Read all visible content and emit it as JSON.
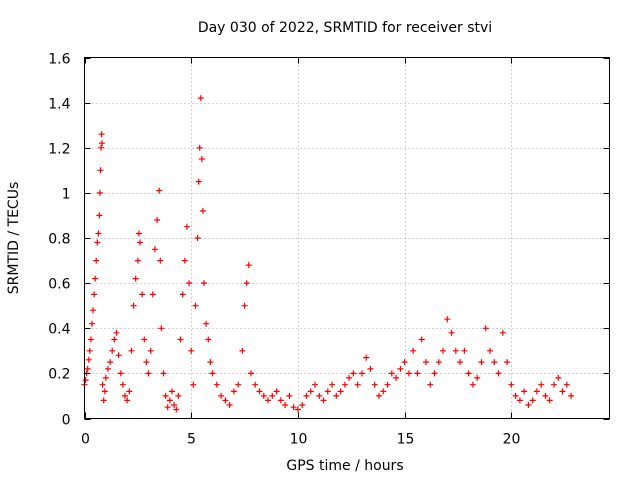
{
  "chart_data": {
    "type": "scatter",
    "title": "Day 030 of 2022, SRMTID for receiver stvi",
    "xlabel": "GPS time / hours",
    "ylabel": "SRMTID / TECUs",
    "xlim": [
      0,
      24.6
    ],
    "ylim": [
      0,
      1.6
    ],
    "x_ticks": [
      0,
      5,
      10,
      15,
      20
    ],
    "x_tick_labels": [
      "0",
      "5",
      "10",
      "15",
      "20"
    ],
    "y_ticks": [
      0,
      0.2,
      0.4,
      0.6,
      0.8,
      1.0,
      1.2,
      1.4,
      1.6
    ],
    "y_tick_labels": [
      "0",
      "0.2",
      "0.4",
      "0.6",
      "0.8",
      "1",
      "1.2",
      "1.4",
      "1.6"
    ],
    "grid": true,
    "marker": "+",
    "marker_color": "#ff0000",
    "series": [
      {
        "name": "stvi",
        "points": [
          [
            0.0,
            0.15
          ],
          [
            0.05,
            0.17
          ],
          [
            0.1,
            0.2
          ],
          [
            0.15,
            0.22
          ],
          [
            0.2,
            0.26
          ],
          [
            0.25,
            0.3
          ],
          [
            0.3,
            0.35
          ],
          [
            0.35,
            0.42
          ],
          [
            0.4,
            0.48
          ],
          [
            0.45,
            0.55
          ],
          [
            0.5,
            0.62
          ],
          [
            0.55,
            0.7
          ],
          [
            0.6,
            0.78
          ],
          [
            0.65,
            0.82
          ],
          [
            0.7,
            0.9
          ],
          [
            0.72,
            1.0
          ],
          [
            0.75,
            1.1
          ],
          [
            0.78,
            1.2
          ],
          [
            0.8,
            1.26
          ],
          [
            0.82,
            1.22
          ],
          [
            0.85,
            0.15
          ],
          [
            0.9,
            0.08
          ],
          [
            0.95,
            0.12
          ],
          [
            1.0,
            0.18
          ],
          [
            1.1,
            0.22
          ],
          [
            1.2,
            0.25
          ],
          [
            1.3,
            0.3
          ],
          [
            1.4,
            0.35
          ],
          [
            1.5,
            0.38
          ],
          [
            1.6,
            0.28
          ],
          [
            1.7,
            0.2
          ],
          [
            1.8,
            0.15
          ],
          [
            1.9,
            0.1
          ],
          [
            2.0,
            0.08
          ],
          [
            2.1,
            0.12
          ],
          [
            2.2,
            0.3
          ],
          [
            2.3,
            0.5
          ],
          [
            2.4,
            0.62
          ],
          [
            2.5,
            0.7
          ],
          [
            2.55,
            0.82
          ],
          [
            2.6,
            0.78
          ],
          [
            2.7,
            0.55
          ],
          [
            2.8,
            0.35
          ],
          [
            2.9,
            0.25
          ],
          [
            3.0,
            0.2
          ],
          [
            3.1,
            0.3
          ],
          [
            3.2,
            0.55
          ],
          [
            3.3,
            0.75
          ],
          [
            3.4,
            0.88
          ],
          [
            3.5,
            1.01
          ],
          [
            3.55,
            0.7
          ],
          [
            3.6,
            0.4
          ],
          [
            3.7,
            0.2
          ],
          [
            3.8,
            0.1
          ],
          [
            3.9,
            0.05
          ],
          [
            4.0,
            0.08
          ],
          [
            4.1,
            0.12
          ],
          [
            4.2,
            0.06
          ],
          [
            4.3,
            0.04
          ],
          [
            4.4,
            0.1
          ],
          [
            4.5,
            0.35
          ],
          [
            4.6,
            0.55
          ],
          [
            4.7,
            0.7
          ],
          [
            4.8,
            0.85
          ],
          [
            4.9,
            0.6
          ],
          [
            5.0,
            0.3
          ],
          [
            5.1,
            0.15
          ],
          [
            5.2,
            0.5
          ],
          [
            5.3,
            0.8
          ],
          [
            5.35,
            1.05
          ],
          [
            5.4,
            1.2
          ],
          [
            5.45,
            1.42
          ],
          [
            5.5,
            1.15
          ],
          [
            5.55,
            0.92
          ],
          [
            5.6,
            0.6
          ],
          [
            5.7,
            0.42
          ],
          [
            5.8,
            0.35
          ],
          [
            5.9,
            0.25
          ],
          [
            6.0,
            0.2
          ],
          [
            6.2,
            0.15
          ],
          [
            6.4,
            0.1
          ],
          [
            6.6,
            0.08
          ],
          [
            6.8,
            0.06
          ],
          [
            7.0,
            0.12
          ],
          [
            7.2,
            0.15
          ],
          [
            7.4,
            0.3
          ],
          [
            7.5,
            0.5
          ],
          [
            7.6,
            0.6
          ],
          [
            7.7,
            0.68
          ],
          [
            7.8,
            0.2
          ],
          [
            8.0,
            0.15
          ],
          [
            8.2,
            0.12
          ],
          [
            8.4,
            0.1
          ],
          [
            8.6,
            0.08
          ],
          [
            8.8,
            0.1
          ],
          [
            9.0,
            0.12
          ],
          [
            9.2,
            0.08
          ],
          [
            9.4,
            0.06
          ],
          [
            9.6,
            0.1
          ],
          [
            9.8,
            0.05
          ],
          [
            10.0,
            0.04
          ],
          [
            10.2,
            0.06
          ],
          [
            10.4,
            0.1
          ],
          [
            10.6,
            0.12
          ],
          [
            10.8,
            0.15
          ],
          [
            11.0,
            0.1
          ],
          [
            11.2,
            0.08
          ],
          [
            11.4,
            0.12
          ],
          [
            11.6,
            0.15
          ],
          [
            11.8,
            0.1
          ],
          [
            12.0,
            0.12
          ],
          [
            12.2,
            0.15
          ],
          [
            12.4,
            0.18
          ],
          [
            12.6,
            0.2
          ],
          [
            12.8,
            0.15
          ],
          [
            13.0,
            0.2
          ],
          [
            13.2,
            0.27
          ],
          [
            13.4,
            0.22
          ],
          [
            13.6,
            0.15
          ],
          [
            13.8,
            0.1
          ],
          [
            14.0,
            0.12
          ],
          [
            14.2,
            0.15
          ],
          [
            14.4,
            0.2
          ],
          [
            14.6,
            0.18
          ],
          [
            14.8,
            0.22
          ],
          [
            15.0,
            0.25
          ],
          [
            15.2,
            0.2
          ],
          [
            15.4,
            0.3
          ],
          [
            15.6,
            0.2
          ],
          [
            15.8,
            0.35
          ],
          [
            16.0,
            0.25
          ],
          [
            16.2,
            0.15
          ],
          [
            16.4,
            0.2
          ],
          [
            16.6,
            0.25
          ],
          [
            16.8,
            0.3
          ],
          [
            17.0,
            0.44
          ],
          [
            17.2,
            0.38
          ],
          [
            17.4,
            0.3
          ],
          [
            17.6,
            0.25
          ],
          [
            17.8,
            0.3
          ],
          [
            18.0,
            0.2
          ],
          [
            18.2,
            0.15
          ],
          [
            18.4,
            0.18
          ],
          [
            18.6,
            0.25
          ],
          [
            18.8,
            0.4
          ],
          [
            19.0,
            0.3
          ],
          [
            19.2,
            0.25
          ],
          [
            19.4,
            0.2
          ],
          [
            19.6,
            0.38
          ],
          [
            19.8,
            0.25
          ],
          [
            20.0,
            0.15
          ],
          [
            20.2,
            0.1
          ],
          [
            20.4,
            0.08
          ],
          [
            20.6,
            0.12
          ],
          [
            20.8,
            0.06
          ],
          [
            21.0,
            0.08
          ],
          [
            21.2,
            0.12
          ],
          [
            21.4,
            0.15
          ],
          [
            21.6,
            0.1
          ],
          [
            21.8,
            0.08
          ],
          [
            22.0,
            0.15
          ],
          [
            22.2,
            0.18
          ],
          [
            22.4,
            0.12
          ],
          [
            22.6,
            0.15
          ],
          [
            22.8,
            0.1
          ]
        ]
      }
    ]
  }
}
